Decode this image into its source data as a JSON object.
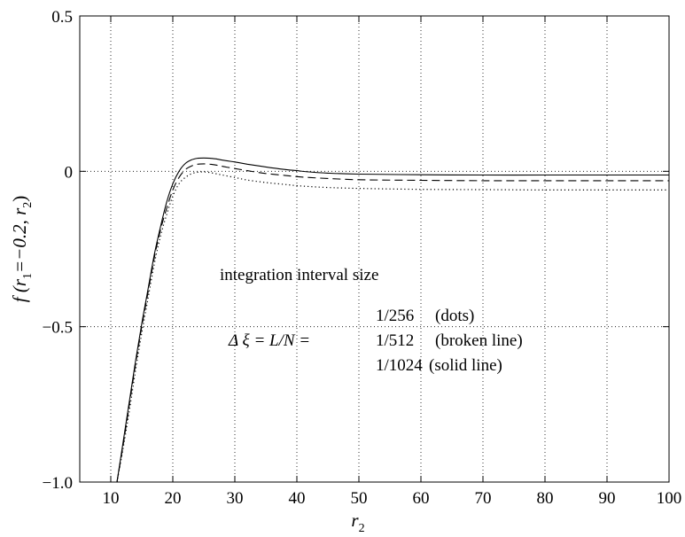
{
  "chart_data": {
    "type": "line",
    "xlabel": "r",
    "xlabel_sub": "2",
    "ylabel_parts": [
      "f (r",
      "1",
      "=−0.2, r",
      "2",
      ")"
    ],
    "xlim": [
      5,
      100
    ],
    "ylim": [
      -1.0,
      0.5
    ],
    "xticks": [
      10,
      20,
      30,
      40,
      50,
      60,
      70,
      80,
      90,
      100
    ],
    "xtick_labels": [
      "10",
      "20",
      "30",
      "40",
      "50",
      "60",
      "70",
      "80",
      "90",
      "100"
    ],
    "yticks": [
      -1.0,
      -0.5,
      0,
      0.5
    ],
    "ytick_labels": [
      "−1.0",
      "−0.5",
      "0",
      "0.5"
    ],
    "grid": "dotted",
    "series": [
      {
        "name": "1/1024 (solid line)",
        "style": "solid",
        "x": [
          11,
          12,
          13,
          14,
          15,
          16,
          17,
          18,
          19,
          20,
          21,
          22,
          23,
          24,
          25,
          26,
          27,
          28,
          30,
          32,
          35,
          38,
          40,
          42,
          45,
          50,
          60,
          70,
          80,
          90,
          100
        ],
        "y": [
          -1.0,
          -0.87,
          -0.74,
          -0.61,
          -0.49,
          -0.38,
          -0.27,
          -0.18,
          -0.1,
          -0.04,
          0.0,
          0.025,
          0.037,
          0.042,
          0.043,
          0.042,
          0.04,
          0.036,
          0.03,
          0.023,
          0.014,
          0.006,
          0.002,
          -0.002,
          -0.006,
          -0.009,
          -0.011,
          -0.012,
          -0.012,
          -0.012,
          -0.012
        ]
      },
      {
        "name": "1/512 (broken line)",
        "style": "dashed",
        "x": [
          11,
          12,
          13,
          14,
          15,
          16,
          17,
          18,
          19,
          20,
          21,
          22,
          23,
          24,
          25,
          26,
          27,
          28,
          30,
          32,
          35,
          38,
          40,
          42,
          45,
          50,
          60,
          70,
          80,
          90,
          100
        ],
        "y": [
          -1.0,
          -0.88,
          -0.75,
          -0.62,
          -0.5,
          -0.39,
          -0.28,
          -0.19,
          -0.12,
          -0.06,
          -0.02,
          0.005,
          0.017,
          0.023,
          0.024,
          0.023,
          0.02,
          0.016,
          0.009,
          0.002,
          -0.007,
          -0.013,
          -0.017,
          -0.02,
          -0.023,
          -0.027,
          -0.029,
          -0.03,
          -0.03,
          -0.03,
          -0.03
        ]
      },
      {
        "name": "1/256 (dots)",
        "style": "dotted",
        "x": [
          11,
          12,
          13,
          14,
          15,
          16,
          17,
          18,
          19,
          20,
          21,
          22,
          23,
          24,
          25,
          26,
          27,
          28,
          30,
          32,
          35,
          38,
          40,
          42,
          45,
          50,
          60,
          70,
          80,
          90,
          100
        ],
        "y": [
          -1.0,
          -0.89,
          -0.77,
          -0.64,
          -0.52,
          -0.41,
          -0.3,
          -0.21,
          -0.14,
          -0.08,
          -0.04,
          -0.02,
          -0.008,
          -0.003,
          -0.002,
          -0.004,
          -0.008,
          -0.012,
          -0.02,
          -0.028,
          -0.036,
          -0.042,
          -0.046,
          -0.049,
          -0.052,
          -0.055,
          -0.058,
          -0.059,
          -0.06,
          -0.06,
          -0.06
        ]
      }
    ],
    "annotation": {
      "title": "integration interval size",
      "formula": "Δ ξ = L/N =",
      "entries": [
        {
          "value": "1/256",
          "desc": "(dots)"
        },
        {
          "value": "1/512",
          "desc": "(broken line)"
        },
        {
          "value": "1/1024",
          "desc": "(solid line)"
        }
      ]
    }
  }
}
